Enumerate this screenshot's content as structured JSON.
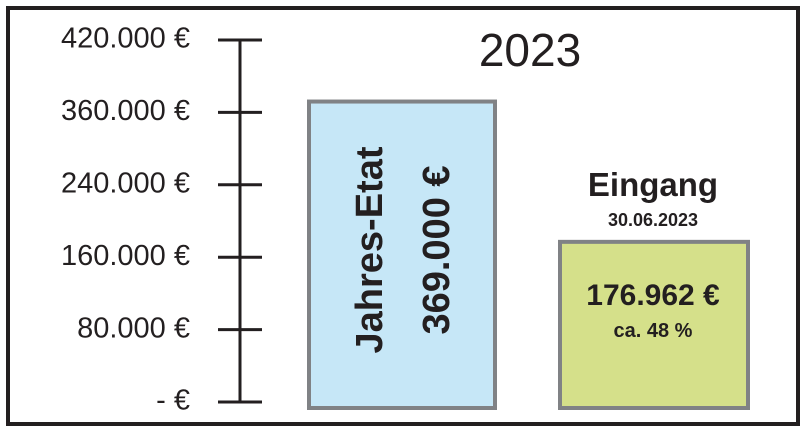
{
  "chart_data": {
    "type": "bar",
    "title": "2023",
    "y_tick_labels": [
      "- €",
      "80.000 €",
      "160.000 €",
      "240.000 €",
      "360.000 €",
      "420.000 €"
    ],
    "bars": [
      {
        "name": "Jahres-Etat",
        "value": 369000,
        "value_label": "369.000 €",
        "color": "#c6e7f7"
      },
      {
        "name": "Eingang",
        "date": "30.06.2023",
        "value": 176962,
        "value_label": "176.962 €",
        "percent_label": "ca. 48 %",
        "color": "#d5e08a"
      }
    ],
    "border_color": "#808285",
    "grid": false
  }
}
